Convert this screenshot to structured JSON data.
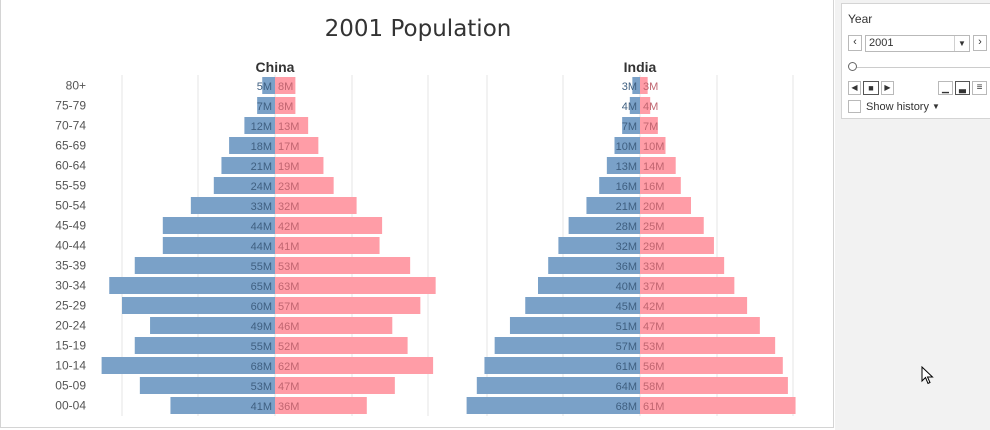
{
  "chart_data": {
    "type": "bar",
    "title": "2001 Population",
    "categories": [
      "80+",
      "75-79",
      "70-74",
      "65-69",
      "60-64",
      "55-59",
      "50-54",
      "45-49",
      "40-44",
      "35-39",
      "30-34",
      "25-29",
      "20-24",
      "15-19",
      "10-14",
      "05-09",
      "00-04"
    ],
    "panels": [
      {
        "name": "China",
        "left_values": [
          5,
          7,
          12,
          18,
          21,
          24,
          33,
          44,
          44,
          55,
          65,
          60,
          49,
          55,
          68,
          53,
          41
        ],
        "right_values": [
          8,
          8,
          13,
          17,
          19,
          23,
          32,
          42,
          41,
          53,
          63,
          57,
          46,
          52,
          62,
          47,
          36
        ],
        "left_labels": [
          "5M",
          "7M",
          "12M",
          "18M",
          "21M",
          "24M",
          "33M",
          "44M",
          "44M",
          "55M",
          "65M",
          "60M",
          "49M",
          "55M",
          "68M",
          "53M",
          "41M"
        ],
        "right_labels": [
          "8M",
          "8M",
          "13M",
          "17M",
          "19M",
          "23M",
          "32M",
          "42M",
          "41M",
          "53M",
          "63M",
          "57M",
          "46M",
          "52M",
          "62M",
          "47M",
          "36M"
        ]
      },
      {
        "name": "India",
        "left_values": [
          3,
          4,
          7,
          10,
          13,
          16,
          21,
          28,
          32,
          36,
          40,
          45,
          51,
          57,
          61,
          64,
          68
        ],
        "right_values": [
          3,
          4,
          7,
          10,
          14,
          16,
          20,
          25,
          29,
          33,
          37,
          42,
          47,
          53,
          56,
          58,
          61
        ],
        "left_labels": [
          "3M",
          "4M",
          "7M",
          "10M",
          "13M",
          "16M",
          "21M",
          "28M",
          "32M",
          "36M",
          "40M",
          "45M",
          "51M",
          "57M",
          "61M",
          "64M",
          "68M"
        ],
        "right_labels": [
          "3M",
          "4M",
          "7M",
          "10M",
          "14M",
          "16M",
          "20M",
          "25M",
          "29M",
          "33M",
          "37M",
          "42M",
          "47M",
          "53M",
          "56M",
          "58M",
          "61M"
        ]
      }
    ],
    "colors": {
      "left": "#7aa1c8",
      "right": "#ff9da7",
      "left_text": "#3f5f80",
      "right_text": "#c06570",
      "grid": "#e6e6e6"
    },
    "grid": true
  },
  "controls": {
    "label": "Year",
    "selected_year": "2001",
    "prev_icon": "chevron-left-icon",
    "next_icon": "chevron-right-icon",
    "show_history_label": "Show history"
  }
}
